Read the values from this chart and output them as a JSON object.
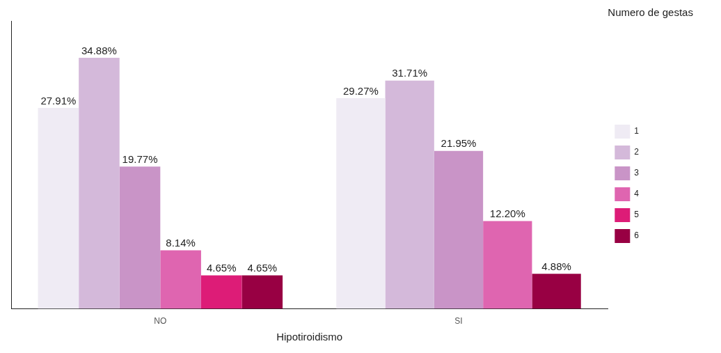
{
  "chart_data": {
    "type": "bar",
    "categories": [
      "NO",
      "SI"
    ],
    "xlabel": "Hipotiroidismo",
    "legend_title": "Numero de gestas",
    "legend": "right",
    "grid": false,
    "tick_labels": "x",
    "series": [
      {
        "name": "1",
        "color": "#efebf4",
        "values": [
          27.91,
          29.27
        ],
        "value_labels": [
          "27.91%",
          "29.27%"
        ]
      },
      {
        "name": "2",
        "color": "#d4b9da",
        "values": [
          34.88,
          31.71
        ],
        "value_labels": [
          "34.88%",
          "31.71%"
        ]
      },
      {
        "name": "3",
        "color": "#c994c7",
        "values": [
          19.77,
          21.95
        ],
        "value_labels": [
          "19.77%",
          "21.95%"
        ]
      },
      {
        "name": "4",
        "color": "#df65b0",
        "values": [
          8.14,
          12.2
        ],
        "value_labels": [
          "8.14%",
          "12.20%"
        ]
      },
      {
        "name": "5",
        "color": "#dd1c77",
        "values": [
          4.65,
          null
        ],
        "value_labels": [
          "4.65%",
          null
        ]
      },
      {
        "name": "6",
        "color": "#980043",
        "values": [
          4.65,
          4.88
        ],
        "value_labels": [
          "4.65%",
          "4.88%"
        ]
      }
    ]
  }
}
